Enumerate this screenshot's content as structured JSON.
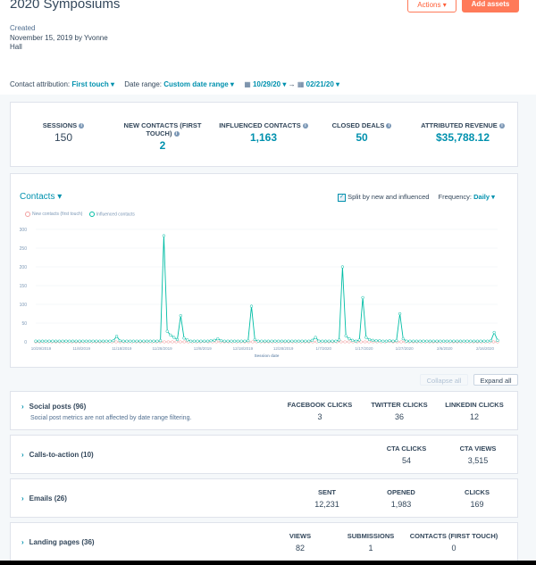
{
  "header": {
    "title": "2020 Symposiums",
    "created_label": "Created",
    "created_value": "November 15, 2019 by Yvonne Hall",
    "actions_label": "Actions ▾",
    "add_assets_label": "Add assets"
  },
  "filters": {
    "attribution_label": "Contact attribution:",
    "attribution_value": "First touch ▾",
    "date_range_label": "Date range:",
    "date_range_value": "Custom date range ▾",
    "start_date": "10/29/20 ▾",
    "end_date": "02/21/20 ▾"
  },
  "metrics": [
    {
      "label": "SESSIONS",
      "value": "150"
    },
    {
      "label": "NEW CONTACTS (FIRST TOUCH)",
      "value": "2"
    },
    {
      "label": "INFLUENCED CONTACTS",
      "value": "1,163"
    },
    {
      "label": "CLOSED DEALS",
      "value": "50"
    },
    {
      "label": "ATTRIBUTED REVENUE",
      "value": "$35,788.12"
    }
  ],
  "chart_card": {
    "title": "Contacts ▾",
    "split_label": "Split by new and influenced",
    "frequency_label": "Frequency:",
    "frequency_value": "Daily ▾"
  },
  "chart_data": {
    "type": "line",
    "xlabel": "Session date",
    "ylabel": "",
    "ylim": [
      0,
      300
    ],
    "y_ticks": [
      "0",
      "50",
      "100",
      "150",
      "200",
      "250",
      "300"
    ],
    "x_tick_labels": [
      "10/29/2019",
      "11/8/2019",
      "11/18/2019",
      "11/28/2019",
      "12/8/2019",
      "12/18/2019",
      "12/28/2019",
      "1/7/2020",
      "1/17/2020",
      "1/27/2020",
      "2/6/2020",
      "2/16/2020"
    ],
    "series": [
      {
        "name": "New contacts (first touch)",
        "color": "#f2a0a0",
        "values": [
          0,
          0,
          0,
          0,
          0,
          0,
          0,
          0,
          0,
          0,
          0,
          0,
          0,
          0,
          0,
          0,
          0,
          0,
          0,
          0,
          0,
          0,
          0,
          0,
          0,
          0,
          0,
          0,
          0,
          0,
          0,
          0,
          0,
          0,
          0,
          0,
          0,
          0,
          0,
          0,
          0,
          0,
          1,
          0,
          0,
          0,
          0,
          0,
          0,
          0,
          0,
          0,
          0,
          0,
          0,
          0,
          0,
          0,
          0,
          0,
          0,
          0,
          0,
          0,
          0,
          0,
          0,
          0,
          0,
          0,
          0,
          0,
          0,
          0,
          0,
          0,
          0,
          0,
          0,
          0,
          0,
          0,
          0,
          0,
          0,
          0,
          0,
          0,
          1,
          0,
          0,
          0,
          0,
          0,
          0,
          0,
          0,
          0,
          0,
          0,
          0,
          0,
          0,
          0,
          0,
          0,
          0,
          0,
          0,
          0,
          0,
          0,
          0,
          0,
          0,
          0
        ]
      },
      {
        "name": "Influenced contacts",
        "color": "#00bda5",
        "values": [
          2,
          2,
          2,
          2,
          2,
          2,
          2,
          2,
          2,
          2,
          2,
          2,
          2,
          2,
          2,
          2,
          2,
          2,
          2,
          2,
          2,
          2,
          2,
          3,
          15,
          3,
          2,
          2,
          2,
          2,
          2,
          2,
          2,
          2,
          2,
          2,
          2,
          3,
          283,
          28,
          18,
          12,
          6,
          70,
          10,
          5,
          2,
          2,
          2,
          2,
          2,
          2,
          3,
          4,
          8,
          3,
          2,
          2,
          2,
          2,
          2,
          2,
          2,
          3,
          95,
          6,
          2,
          2,
          2,
          2,
          2,
          2,
          2,
          2,
          2,
          2,
          2,
          2,
          2,
          2,
          2,
          2,
          4,
          12,
          2,
          2,
          2,
          2,
          2,
          2,
          5,
          200,
          16,
          8,
          4,
          2,
          5,
          118,
          12,
          6,
          4,
          3,
          3,
          2,
          2,
          3,
          2,
          3,
          75,
          8,
          2,
          2,
          2,
          2,
          2,
          2,
          2,
          2,
          2,
          2,
          2,
          2,
          2,
          2,
          2,
          2,
          2,
          2,
          2,
          2,
          2,
          2,
          2,
          2,
          2,
          3,
          25,
          4
        ]
      }
    ]
  },
  "controls": {
    "collapse_all": "Collapse all",
    "expand_all": "Expand all"
  },
  "sections": [
    {
      "title": "Social posts (96)",
      "subtitle": "Social post metrics are not affected by date range filtering.",
      "columns": [
        {
          "header": "FACEBOOK CLICKS",
          "value": "3"
        },
        {
          "header": "TWITTER CLICKS",
          "value": "36"
        },
        {
          "header": "LINKEDIN CLICKS",
          "value": "12"
        }
      ]
    },
    {
      "title": "Calls-to-action (10)",
      "columns": [
        {
          "header": "CTA CLICKS",
          "value": "54"
        },
        {
          "header": "CTA VIEWS",
          "value": "3,515"
        }
      ]
    },
    {
      "title": "Emails (26)",
      "columns": [
        {
          "header": "SENT",
          "value": "12,231"
        },
        {
          "header": "OPENED",
          "value": "1,983"
        },
        {
          "header": "CLICKS",
          "value": "169"
        }
      ]
    },
    {
      "title": "Landing pages (36)",
      "columns": [
        {
          "header": "VIEWS",
          "value": "82"
        },
        {
          "header": "SUBMISSIONS",
          "value": "1"
        },
        {
          "header": "CONTACTS (FIRST TOUCH)",
          "value": "0"
        }
      ]
    }
  ],
  "colors": {
    "accent": "#0091ae",
    "primary_button": "#ff7a59",
    "influenced_line": "#00bda5",
    "new_contacts_line": "#f2a0a0"
  }
}
